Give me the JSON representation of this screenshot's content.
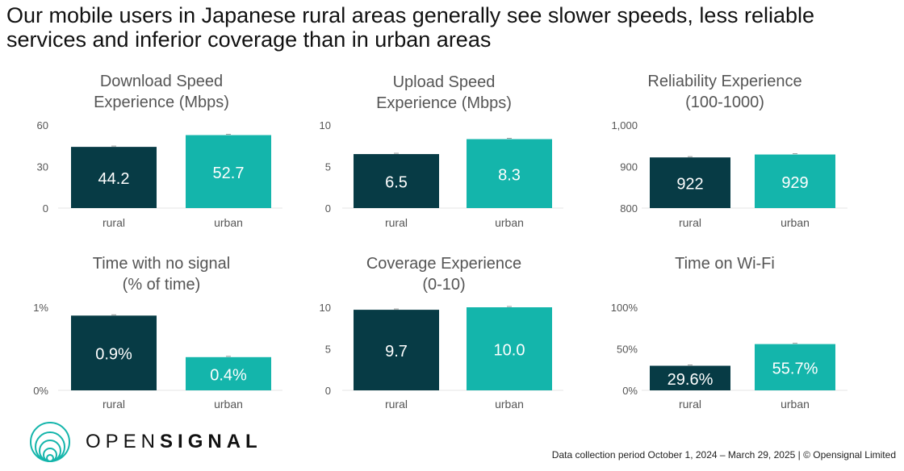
{
  "headline": "Our mobile users in Japanese rural areas generally see slower speeds, less reliable services and inferior coverage than in urban areas",
  "colors": {
    "rural": "#073b45",
    "urban": "#14b5ab",
    "text": "#555555"
  },
  "chart_data": [
    {
      "type": "bar",
      "title_line1": "Download Speed",
      "title_line2": "Experience (Mbps)",
      "categories": [
        "rural",
        "urban"
      ],
      "values": [
        44.2,
        52.7
      ],
      "value_labels": [
        "44.2",
        "52.7"
      ],
      "ylim": [
        0,
        60
      ],
      "ticks": [
        0,
        30,
        60
      ],
      "tick_labels": [
        "0",
        "30",
        "60"
      ],
      "grid": false
    },
    {
      "type": "bar",
      "title_line1": "Upload Speed",
      "title_line2": "Experience (Mbps)",
      "categories": [
        "rural",
        "urban"
      ],
      "values": [
        6.5,
        8.3
      ],
      "value_labels": [
        "6.5",
        "8.3"
      ],
      "ylim": [
        0,
        10
      ],
      "ticks": [
        0,
        5,
        10
      ],
      "tick_labels": [
        "0",
        "5",
        "10"
      ],
      "grid": false
    },
    {
      "type": "bar",
      "title_line1": "Reliability Experience",
      "title_line2": "(100-1000)",
      "categories": [
        "rural",
        "urban"
      ],
      "values": [
        922,
        929
      ],
      "value_labels": [
        "922",
        "929"
      ],
      "ylim": [
        800,
        1000
      ],
      "ticks": [
        800,
        900,
        1000
      ],
      "tick_labels": [
        "800",
        "900",
        "1,000"
      ],
      "grid": false
    },
    {
      "type": "bar",
      "title_line1": "Time with no signal",
      "title_line2": "(% of time)",
      "categories": [
        "rural",
        "urban"
      ],
      "values": [
        0.9,
        0.4
      ],
      "value_labels": [
        "0.9%",
        "0.4%"
      ],
      "ylim": [
        0,
        1
      ],
      "ticks": [
        0,
        1
      ],
      "tick_labels": [
        "0%",
        "1%"
      ],
      "grid": false
    },
    {
      "type": "bar",
      "title_line1": "Coverage Experience",
      "title_line2": "(0-10)",
      "categories": [
        "rural",
        "urban"
      ],
      "values": [
        9.7,
        10.0
      ],
      "value_labels": [
        "9.7",
        "10.0"
      ],
      "ylim": [
        0,
        10
      ],
      "ticks": [
        0,
        5,
        10
      ],
      "tick_labels": [
        "0",
        "5",
        "10"
      ],
      "grid": false
    },
    {
      "type": "bar",
      "title_line1": "Time on Wi-Fi",
      "title_line2": "",
      "categories": [
        "rural",
        "urban"
      ],
      "values": [
        29.6,
        55.7
      ],
      "value_labels": [
        "29.6%",
        "55.7%"
      ],
      "ylim": [
        0,
        100
      ],
      "ticks": [
        0,
        50,
        100
      ],
      "tick_labels": [
        "0%",
        "50%",
        "100%"
      ],
      "grid": false
    }
  ],
  "logo": {
    "text_light": "OPEN",
    "text_bold": "SIGNAL"
  },
  "footer": "Data collection period October 1, 2024 – March 29, 2025 | © Opensignal Limited"
}
